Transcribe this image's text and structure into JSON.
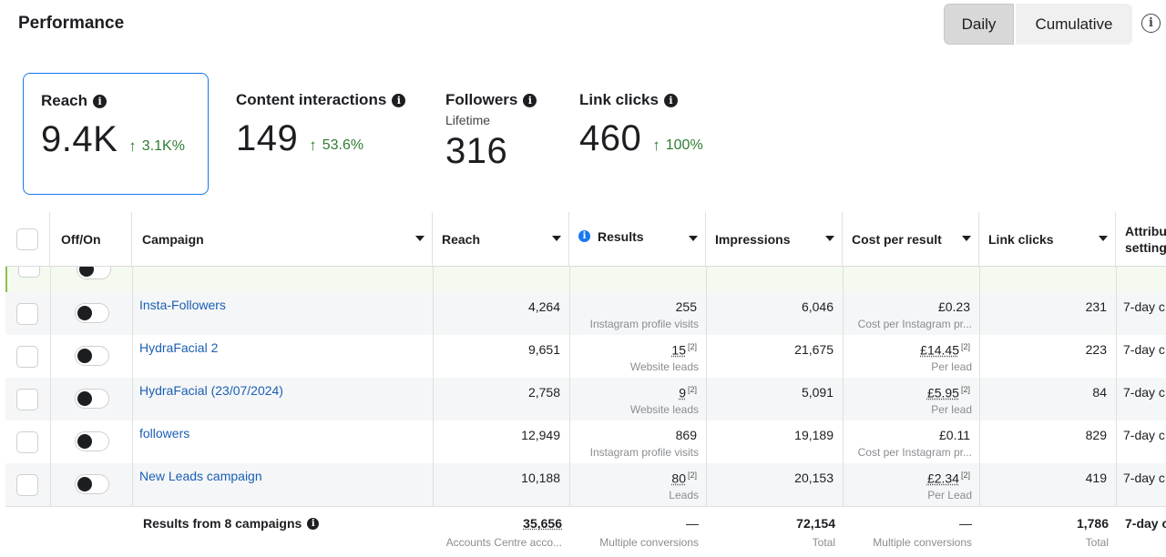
{
  "header": {
    "title": "Performance",
    "daily_label": "Daily",
    "cumulative_label": "Cumulative"
  },
  "metrics": [
    {
      "label": "Reach",
      "value": "9.4K",
      "delta": "3.1K%",
      "sub": ""
    },
    {
      "label": "Content interactions",
      "value": "149",
      "delta": "53.6%",
      "sub": ""
    },
    {
      "label": "Followers",
      "value": "316",
      "delta": "",
      "sub": "Lifetime"
    },
    {
      "label": "Link clicks",
      "value": "460",
      "delta": "100%",
      "sub": ""
    }
  ],
  "table": {
    "columns": [
      "Off/On",
      "Campaign",
      "Reach",
      "Results",
      "Impressions",
      "Cost per result",
      "Link clicks",
      "Attribu setting"
    ],
    "rows": [
      {
        "campaign": "Insta-Followers",
        "reach": "4,264",
        "results": "255",
        "results_sub": "Instagram profile visits",
        "impressions": "6,046",
        "cost": "£0.23",
        "cost_sub": "Cost per Instagram pr...",
        "link_clicks": "231",
        "attribution": "7-day c"
      },
      {
        "campaign": "HydraFacial 2",
        "reach": "9,651",
        "results": "15",
        "results_sub": "Website leads",
        "impressions": "21,675",
        "cost": "£14.45",
        "cost_sub": "Per lead",
        "link_clicks": "223",
        "attribution": "7-day c"
      },
      {
        "campaign": "HydraFacial (23/07/2024)",
        "reach": "2,758",
        "results": "9",
        "results_sub": "Website leads",
        "impressions": "5,091",
        "cost": "£5.95",
        "cost_sub": "Per lead",
        "link_clicks": "84",
        "attribution": "7-day c"
      },
      {
        "campaign": "followers",
        "reach": "12,949",
        "results": "869",
        "results_sub": "Instagram profile visits",
        "impressions": "19,189",
        "cost": "£0.11",
        "cost_sub": "Cost per Instagram pr...",
        "link_clicks": "829",
        "attribution": "7-day c"
      },
      {
        "campaign": "New Leads campaign",
        "reach": "10,188",
        "results": "80",
        "results_sub": "Leads",
        "impressions": "20,153",
        "cost": "£2.34",
        "cost_sub": "Per Lead",
        "link_clicks": "419",
        "attribution": "7-day c"
      }
    ],
    "footer": {
      "label": "Results from 8 campaigns",
      "reach": "35,656",
      "reach_sub": "Accounts Centre acco...",
      "results": "—",
      "results_sub": "Multiple conversions",
      "impressions": "72,154",
      "impressions_sub": "Total",
      "cost": "—",
      "cost_sub": "Multiple conversions",
      "link_clicks": "1,786",
      "link_clicks_sub": "Total",
      "attribution": "7-day c"
    },
    "footnote_marker": "[2]"
  },
  "colors": {
    "accent": "#1877f2",
    "positive": "#2e7d32",
    "link": "#1a5fb4"
  }
}
